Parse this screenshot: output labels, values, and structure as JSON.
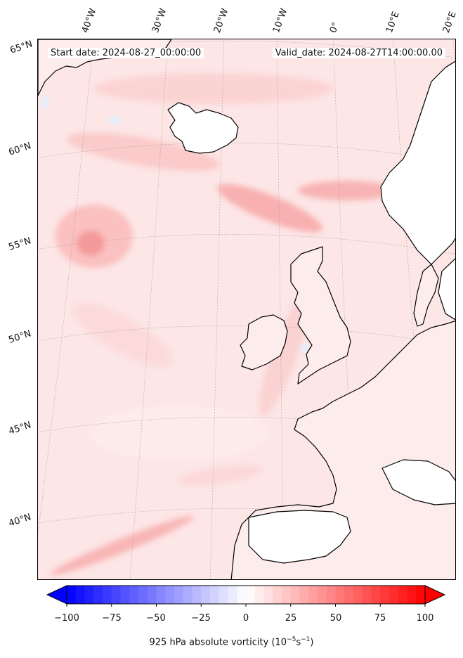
{
  "map": {
    "start_date_text": "Start date: 2024-08-27_00:00:00",
    "valid_date_text": "Valid_date: 2024-08-27T14:00:00.00",
    "lon_labels": [
      "40°W",
      "30°W",
      "20°W",
      "10°W",
      "0°",
      "10°E",
      "20°E"
    ],
    "lat_labels": [
      "65°N",
      "60°N",
      "55°N",
      "50°N",
      "45°N",
      "40°N"
    ],
    "field_colors": {
      "light": "#fde3e3",
      "mid": "#fbc4c4",
      "strong": "#f6a0a0",
      "blue": "#e3ecfb"
    }
  },
  "colorbar": {
    "ticks": [
      "−100",
      "−75",
      "−50",
      "−25",
      "0",
      "25",
      "50",
      "75",
      "100"
    ],
    "label": "925 hPa absolute vorticity (10",
    "label_exp": "−5",
    "label_unit": "s",
    "label_unit_exp": "−1",
    "label_close": ")",
    "range": [
      -100,
      100
    ],
    "min_color": "#0000ff",
    "max_color": "#ff0000"
  }
}
